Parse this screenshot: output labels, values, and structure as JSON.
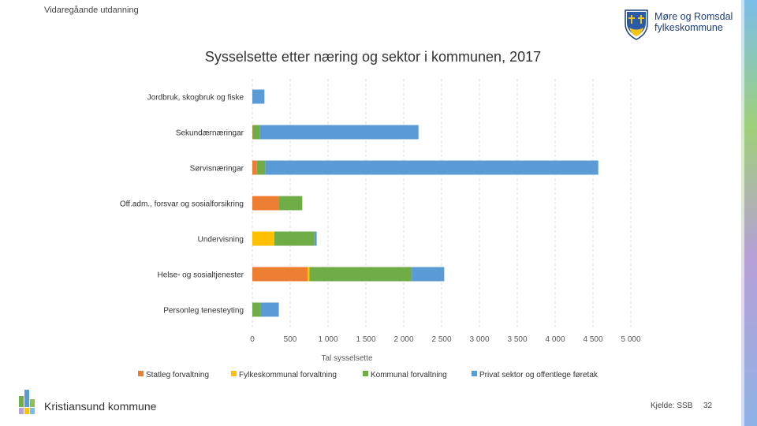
{
  "header": {
    "label": "Vidaregåande utdanning"
  },
  "logo": {
    "line1": "Møre og Romsdal",
    "line2": "fylkeskommune"
  },
  "footer": {
    "org": "Kristiansund kommune",
    "source": "Kjelde: SSB",
    "page": "32"
  },
  "colors": {
    "statleg": "#ED7D31",
    "fylkeskommunal": "#FFC000",
    "kommunal": "#70AD47",
    "privat": "#5B9BD5",
    "grid": "#d9d9d9",
    "axis_text": "#595959"
  },
  "chart_data": {
    "type": "bar",
    "orientation": "horizontal",
    "stacked": true,
    "title": "Sysselsette etter næring og sektor i kommunen, 2017",
    "xlabel": "Tal sysselsette",
    "ylabel": "",
    "xlim": [
      0,
      5000
    ],
    "xticks": [
      0,
      500,
      1000,
      1500,
      2000,
      2500,
      3000,
      3500,
      4000,
      4500,
      5000
    ],
    "xtick_labels": [
      "0",
      "500",
      "1 000",
      "1 500",
      "2 000",
      "2 500",
      "3 000",
      "3 500",
      "4 000",
      "4 500",
      "5 000"
    ],
    "grid": true,
    "legend_position": "bottom",
    "categories": [
      "Jordbruk, skogbruk og fiske",
      "Sekundærnæringar",
      "Sørvisnæringar",
      "Off.adm., forsvar og sosialforsikring",
      "Undervisning",
      "Helse- og sosialtjenester",
      "Personleg tenesteyting"
    ],
    "series": [
      {
        "name": "Statleg forvaltning",
        "color": "#ED7D31",
        "values": [
          0,
          5,
          60,
          350,
          0,
          730,
          0
        ]
      },
      {
        "name": "Fylkeskommunal forvaltning",
        "color": "#FFC000",
        "values": [
          0,
          0,
          0,
          0,
          290,
          25,
          0
        ]
      },
      {
        "name": "Kommunal forvaltning",
        "color": "#70AD47",
        "values": [
          0,
          90,
          110,
          310,
          530,
          1350,
          110
        ]
      },
      {
        "name": "Privat sektor og offentlege føretak",
        "color": "#5B9BD5",
        "values": [
          160,
          2100,
          4400,
          0,
          30,
          430,
          240
        ]
      }
    ]
  }
}
